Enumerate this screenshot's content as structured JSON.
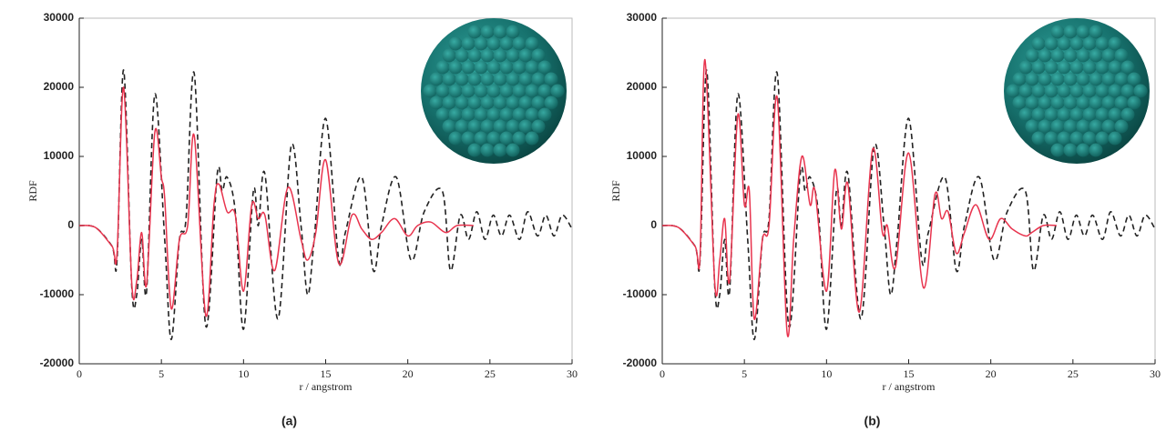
{
  "chart_data": [
    {
      "type": "line",
      "caption": "(a)",
      "xlabel": "r / angstrom",
      "ylabel": "RDF",
      "xlim": [
        0,
        30
      ],
      "ylim": [
        -20000,
        30000
      ],
      "xticks": [
        0,
        5,
        10,
        15,
        20,
        25,
        30
      ],
      "yticks": [
        -20000,
        -10000,
        0,
        10000,
        20000,
        30000
      ],
      "series": [
        {
          "color": "#222222",
          "dashed": true,
          "x": [
            0,
            1,
            2,
            2.3,
            2.7,
            3.2,
            3.5,
            3.8,
            4.1,
            4.6,
            5.2,
            5.6,
            6.1,
            6.5,
            7.0,
            7.7,
            8.4,
            8.7,
            9.0,
            9.5,
            10.0,
            10.6,
            10.9,
            11.3,
            12.1,
            12.9,
            13.5,
            13.9,
            14.3,
            15.0,
            15.8,
            16.2,
            17.2,
            17.9,
            18.4,
            19.3,
            20.2,
            21.0,
            22.1,
            22.6,
            23.2,
            23.7,
            24.2,
            24.7,
            25.2,
            25.7,
            26.2,
            26.8,
            27.3,
            27.9,
            28.4,
            28.9,
            29.4,
            30
          ],
          "values": [
            0,
            -300,
            -3000,
            -5000,
            22500,
            -9000,
            -10000,
            -2000,
            -9500,
            19000,
            -2000,
            -16500,
            -2000,
            1000,
            22000,
            -14500,
            7500,
            5000,
            7000,
            2000,
            -15000,
            5000,
            0,
            7500,
            -13500,
            11500,
            0,
            -10000,
            -2000,
            15500,
            -5000,
            -1000,
            7000,
            -6500,
            0,
            7000,
            -5000,
            2000,
            5000,
            -6500,
            1500,
            -2000,
            2000,
            -2000,
            1500,
            -1500,
            1500,
            -2000,
            2000,
            -1500,
            1500,
            -1500,
            1500,
            -500
          ]
        },
        {
          "color": "#e8344e",
          "dashed": false,
          "x": [
            0,
            1,
            2,
            2.3,
            2.7,
            3.2,
            3.5,
            3.8,
            4.1,
            4.6,
            5.0,
            5.2,
            5.6,
            6.1,
            6.6,
            7.0,
            7.7,
            8.2,
            8.5,
            9.0,
            9.5,
            10.0,
            10.5,
            10.9,
            11.3,
            11.9,
            12.7,
            13.5,
            13.9,
            14.4,
            15.0,
            15.8,
            16.6,
            17.2,
            17.8,
            18.4,
            19.2,
            20.0,
            20.6,
            21.4,
            22.3,
            23,
            24
          ],
          "values": [
            0,
            -300,
            -3000,
            -4000,
            20000,
            -8500,
            -8000,
            -1000,
            -8500,
            13500,
            7000,
            4000,
            -12000,
            -2000,
            0,
            13000,
            -13000,
            3000,
            6000,
            2000,
            1500,
            -9500,
            3000,
            1000,
            1500,
            -6500,
            5500,
            -2000,
            -5000,
            -1000,
            9500,
            -5500,
            1500,
            -500,
            -2000,
            -1000,
            1000,
            -1500,
            0,
            500,
            -1000,
            0,
            0
          ]
        }
      ]
    },
    {
      "type": "line",
      "caption": "(b)",
      "xlabel": "r / angstrom",
      "ylabel": "RDF",
      "xlim": [
        0,
        30
      ],
      "ylim": [
        -20000,
        30000
      ],
      "xticks": [
        0,
        5,
        10,
        15,
        20,
        25,
        30
      ],
      "yticks": [
        -20000,
        -10000,
        0,
        10000,
        20000,
        30000
      ],
      "series": [
        {
          "color": "#222222",
          "dashed": true,
          "x": [
            0,
            1,
            2,
            2.3,
            2.7,
            3.2,
            3.5,
            3.8,
            4.1,
            4.6,
            5.2,
            5.6,
            6.1,
            6.5,
            7.0,
            7.7,
            8.4,
            8.7,
            9.0,
            9.5,
            10.0,
            10.6,
            10.9,
            11.3,
            12.1,
            12.9,
            13.5,
            13.9,
            14.3,
            15.0,
            15.8,
            16.2,
            17.2,
            17.9,
            18.4,
            19.3,
            20.2,
            21.0,
            22.1,
            22.6,
            23.2,
            23.7,
            24.2,
            24.7,
            25.2,
            25.7,
            26.2,
            26.8,
            27.3,
            27.9,
            28.4,
            28.9,
            29.4,
            30
          ],
          "values": [
            0,
            -300,
            -3000,
            -5000,
            22500,
            -9000,
            -10000,
            -2000,
            -9500,
            19000,
            -2000,
            -16500,
            -2000,
            1000,
            22000,
            -14500,
            7500,
            5000,
            7000,
            2000,
            -15000,
            5000,
            0,
            7500,
            -13500,
            11500,
            0,
            -10000,
            -2000,
            15500,
            -5000,
            -1000,
            7000,
            -6500,
            0,
            7000,
            -5000,
            2000,
            5000,
            -6500,
            1500,
            -2000,
            2000,
            -2000,
            1500,
            -1500,
            1500,
            -2000,
            2000,
            -1500,
            1500,
            -1500,
            1500,
            -500
          ]
        },
        {
          "color": "#e8344e",
          "dashed": false,
          "x": [
            0,
            1,
            2,
            2.3,
            2.6,
            3.2,
            3.5,
            3.8,
            4.1,
            4.6,
            5.0,
            5.3,
            5.6,
            6.1,
            6.5,
            7.0,
            7.6,
            8.0,
            8.5,
            9.0,
            9.3,
            10.0,
            10.5,
            10.9,
            11.3,
            12.0,
            12.8,
            13.4,
            13.7,
            14.2,
            15.0,
            15.9,
            16.6,
            17.0,
            17.4,
            17.9,
            18.4,
            19.1,
            19.9,
            20.6,
            21.3,
            22.1,
            22.5,
            23.2,
            24
          ],
          "values": [
            0,
            -300,
            -3000,
            -4500,
            24000,
            -8500,
            -5000,
            1000,
            -8000,
            16000,
            3000,
            5000,
            -13500,
            -2000,
            0,
            18500,
            -15500,
            -2000,
            10000,
            3000,
            5000,
            -9500,
            8000,
            -500,
            6000,
            -12500,
            11000,
            -1000,
            0,
            -6000,
            10500,
            -9000,
            4500,
            1000,
            2000,
            -4000,
            -1000,
            3000,
            -2000,
            1000,
            -500,
            -1500,
            -1000,
            0,
            0
          ]
        }
      ]
    }
  ]
}
